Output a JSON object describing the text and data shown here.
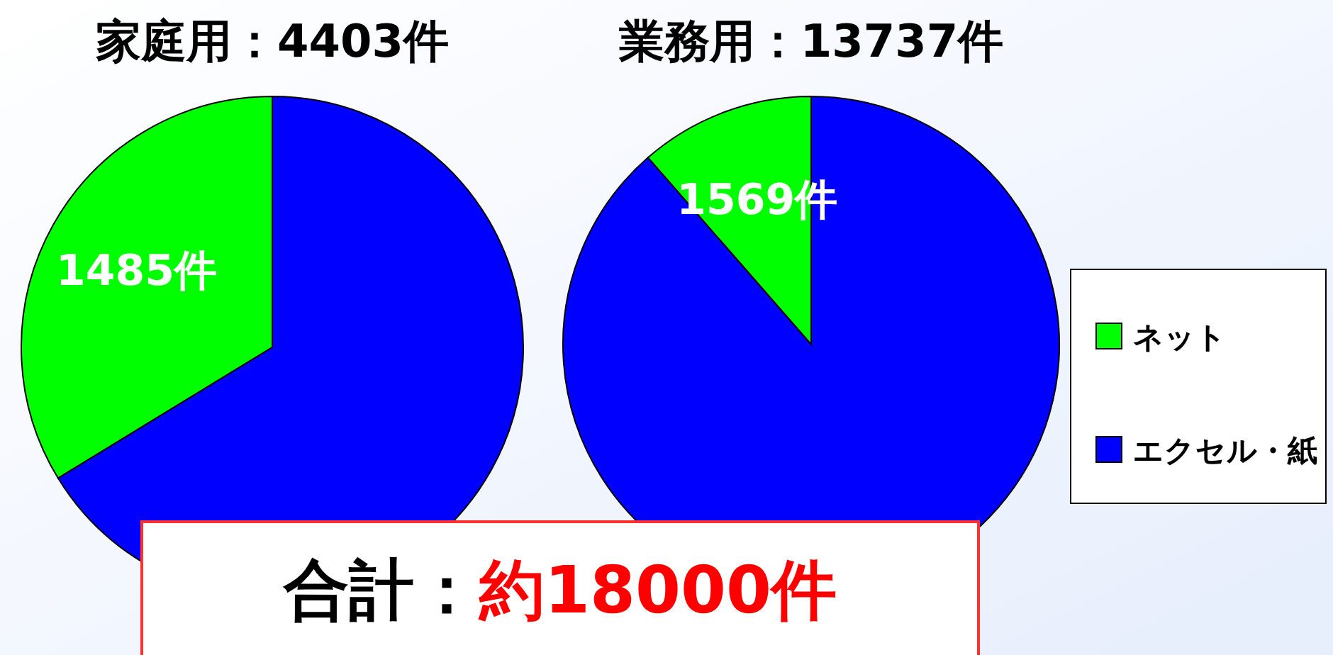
{
  "chart_data": {
    "type": "pie",
    "categories": [
      "ネット",
      "エクセル・紙"
    ],
    "colors": [
      "#00ff00",
      "#0000ff"
    ],
    "legend": "right",
    "series": [
      {
        "name": "家庭用：4403件",
        "values": [
          1485,
          2918
        ],
        "value_labels": [
          "1485件",
          null
        ]
      },
      {
        "name": "業務用：13737件",
        "values": [
          1569,
          12168
        ],
        "value_labels": [
          "1569件",
          null
        ]
      }
    ],
    "annotations": [
      "合計：",
      "約18000件"
    ]
  }
}
